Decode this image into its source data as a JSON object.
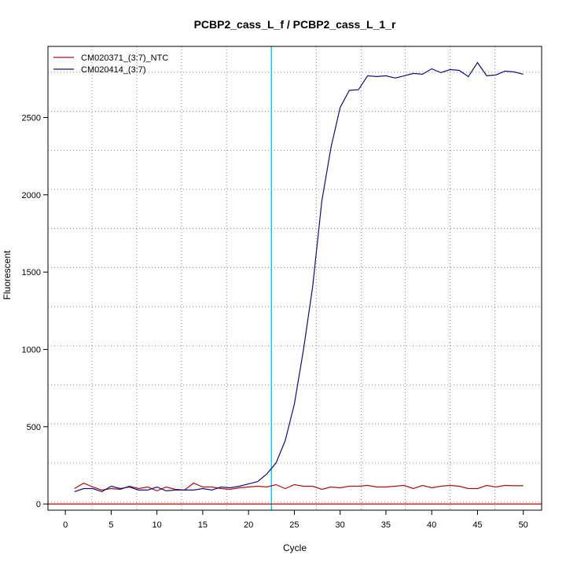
{
  "chart_data": {
    "type": "line",
    "title": "PCBP2_cass_L_f / PCBP2_cass_L_1_r",
    "xlabel": "Cycle",
    "ylabel": "Fluorescent",
    "xlim": [
      -1.9,
      52
    ],
    "ylim": [
      -40,
      2960
    ],
    "x_ticks": [
      0,
      5,
      10,
      15,
      20,
      25,
      30,
      35,
      40,
      45,
      50
    ],
    "y_ticks": [
      0,
      500,
      1000,
      1500,
      2000,
      2500
    ],
    "grid": {
      "style": "dotted",
      "vertical": [
        2.9,
        7.8,
        12.7,
        17.6,
        22.5,
        27.4,
        32.3,
        37.1,
        42.0,
        46.9
      ],
      "horizontal": [
        12,
        265,
        518,
        770,
        1023,
        1276,
        1529,
        1782,
        2035,
        2287,
        2540,
        2793
      ]
    },
    "threshold_line": {
      "x": 22.5,
      "color": "#00d0f0"
    },
    "baseline": {
      "y": 0,
      "color": "#cc0000"
    },
    "legend": {
      "position": "top-left"
    },
    "x": [
      1,
      2,
      3,
      4,
      5,
      6,
      7,
      8,
      9,
      10,
      11,
      12,
      13,
      14,
      15,
      16,
      17,
      18,
      19,
      20,
      21,
      22,
      23,
      24,
      25,
      26,
      27,
      28,
      29,
      30,
      31,
      32,
      33,
      34,
      35,
      36,
      37,
      38,
      39,
      40,
      41,
      42,
      43,
      44,
      45,
      46,
      47,
      48,
      49,
      50
    ],
    "series": [
      {
        "name": "CM020371_(3:7)_NTC",
        "color": "#aa1111",
        "values": [
          100,
          135,
          110,
          90,
          100,
          95,
          115,
          100,
          110,
          85,
          110,
          95,
          90,
          135,
          110,
          110,
          100,
          95,
          105,
          110,
          115,
          110,
          125,
          100,
          125,
          115,
          115,
          95,
          110,
          105,
          115,
          115,
          120,
          110,
          110,
          115,
          120,
          100,
          120,
          105,
          115,
          120,
          115,
          100,
          100,
          120,
          110,
          120,
          118,
          118
        ]
      },
      {
        "name": "CM020414_(3:7)",
        "color": "#101080",
        "values": [
          80,
          100,
          100,
          80,
          115,
          100,
          110,
          90,
          90,
          110,
          85,
          90,
          90,
          90,
          100,
          90,
          110,
          105,
          115,
          130,
          145,
          195,
          265,
          410,
          645,
          1000,
          1405,
          1960,
          2305,
          2565,
          2675,
          2680,
          2770,
          2765,
          2770,
          2755,
          2770,
          2785,
          2780,
          2815,
          2790,
          2810,
          2805,
          2765,
          2855,
          2770,
          2775,
          2800,
          2795,
          2780
        ]
      }
    ]
  }
}
